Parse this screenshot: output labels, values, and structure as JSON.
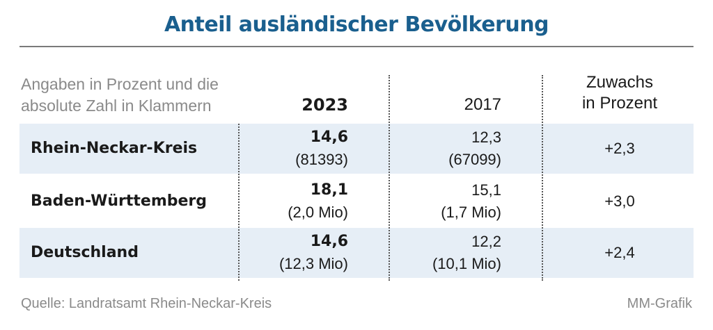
{
  "chart_data": {
    "type": "table",
    "title": "Anteil ausländischer Bevölkerung",
    "subtitle_lines": [
      "Angaben in Prozent und die",
      "absolute Zahl in Klammern"
    ],
    "columns": {
      "col_2023": "2023",
      "col_2017": "2017",
      "growth_lines": [
        "Zuwachs",
        "in Prozent"
      ]
    },
    "rows": [
      {
        "label": "Rhein-Neckar-Kreis",
        "v2023": "14,6",
        "abs2023": "(81393)",
        "v2017": "12,3",
        "abs2017": "(67099)",
        "growth": "+2,3"
      },
      {
        "label": "Baden-Württemberg",
        "v2023": "18,1",
        "abs2023": "(2,0 Mio)",
        "v2017": "15,1",
        "abs2017": "(1,7 Mio)",
        "growth": "+3,0"
      },
      {
        "label": "Deutschland",
        "v2023": "14,6",
        "abs2023": "(12,3 Mio)",
        "v2017": "12,2",
        "abs2017": "(10,1 Mio)",
        "growth": "+2,4"
      }
    ],
    "source": "Quelle:  Landratsamt Rhein-Neckar-Kreis",
    "credit": "MM-Grafik",
    "colors": {
      "title": "#1a5f8e",
      "row_shading": "#e6eef6",
      "muted_text": "#8a8a8a"
    }
  }
}
